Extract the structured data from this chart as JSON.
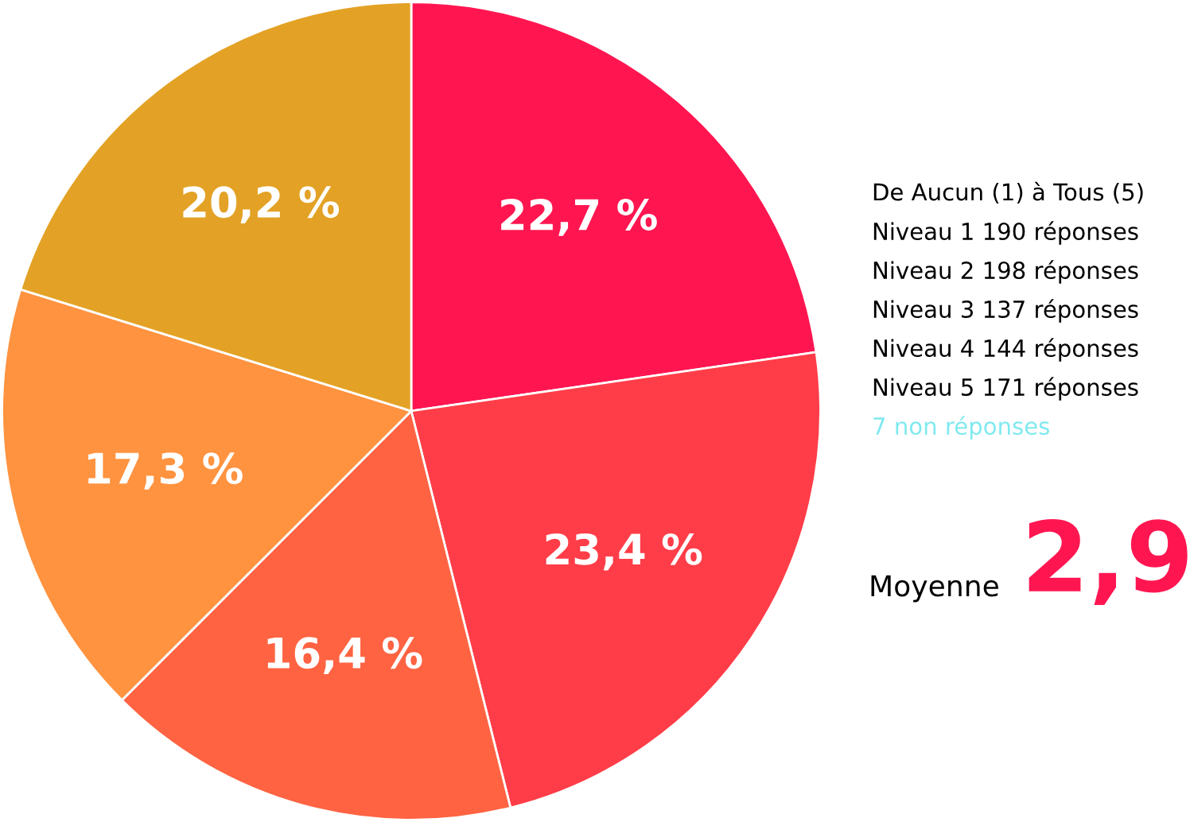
{
  "chart_data": {
    "type": "pie",
    "categories": [
      null,
      null,
      null,
      null,
      null
    ],
    "values": [
      22.7,
      23.4,
      16.4,
      17.3,
      20.2
    ],
    "value_labels": [
      "22,7 %",
      "23,4 %",
      "16,4 %",
      "17,3 %",
      "20,2 %"
    ],
    "colors": [
      "#ff1651",
      "#ff3d48",
      "#ff6342",
      "#ff9340",
      "#e3a225"
    ],
    "legend": false,
    "annotations": [
      "De Aucun (1) à Tous (5)",
      "Niveau 1 190 réponses",
      "Niveau 2 198 réponses",
      "Niveau 3 137 réponses",
      "Niveau 4 144 réponses",
      "Niveau 5 171 réponses",
      "7 non réponses",
      "Moyenne",
      "2,9"
    ]
  }
}
